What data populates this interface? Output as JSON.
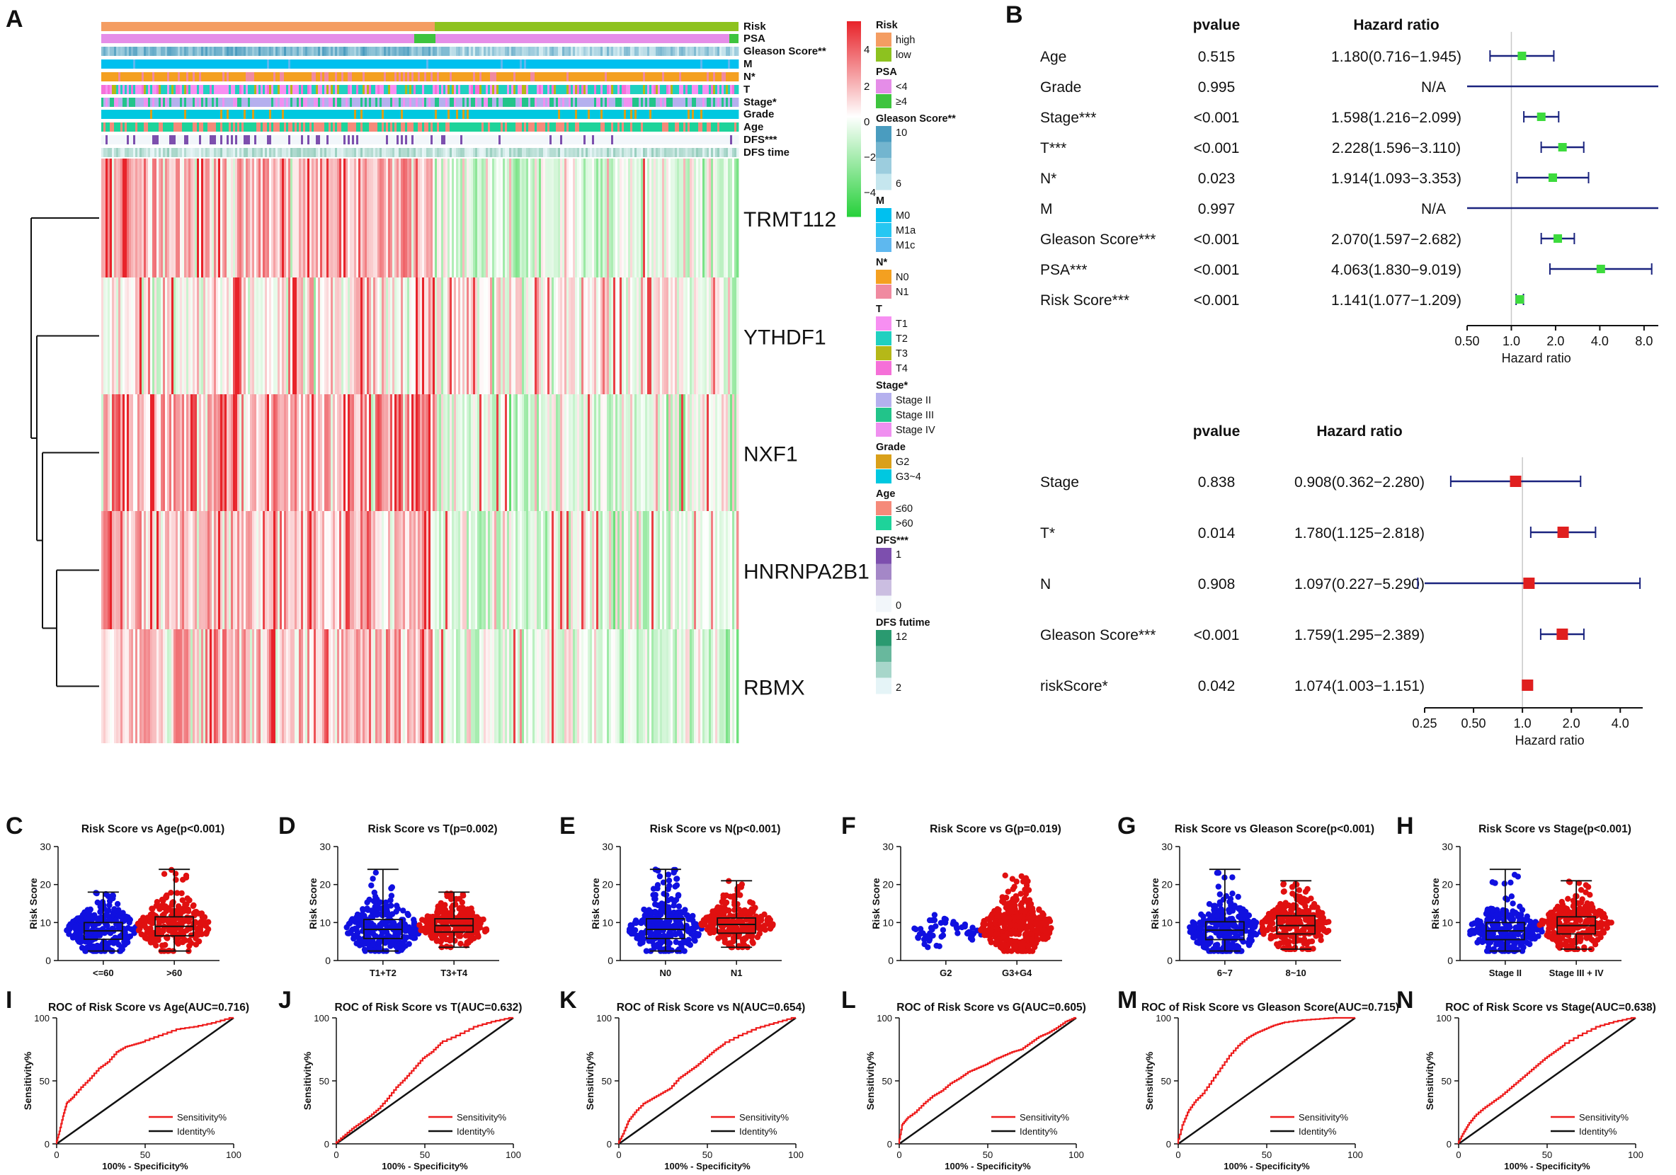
{
  "panel_labels": [
    "A",
    "B",
    "C",
    "D",
    "E",
    "F",
    "G",
    "H",
    "I",
    "J",
    "K",
    "L",
    "M",
    "N"
  ],
  "heatmap": {
    "annotation_rows": [
      "Risk",
      "PSA",
      "Gleason Score**",
      "M",
      "N*",
      "T",
      "Stage*",
      "Grade",
      "Age",
      "DFS***",
      "DFS time"
    ],
    "genes": [
      "TRMT112",
      "YTHDF1",
      "NXF1",
      "HNRNPA2B1",
      "RBMX"
    ],
    "color_scale": {
      "ticks": [
        "4",
        "2",
        "0",
        "−2",
        "−4"
      ],
      "high": "#e8232a",
      "mid": "#ffffff",
      "low": "#26d03a"
    },
    "legend_groups": [
      {
        "title": "Risk",
        "items": [
          {
            "label": "high",
            "color": "#f49d62"
          },
          {
            "label": "low",
            "color": "#8dc21f"
          }
        ]
      },
      {
        "title": "PSA",
        "items": [
          {
            "label": "<4",
            "color": "#e58de8"
          },
          {
            "label": "≥4",
            "color": "#3ec43e"
          }
        ]
      },
      {
        "title": "Gleason Score**",
        "gradient": [
          "#4a9cbf",
          "#c5e6ee"
        ],
        "ticks": [
          "10",
          "6"
        ]
      },
      {
        "title": "M",
        "items": [
          {
            "label": "M0",
            "color": "#00c0ef"
          },
          {
            "label": "M1a",
            "color": "#26c7f2"
          },
          {
            "label": "M1c",
            "color": "#5eb8ef"
          }
        ]
      },
      {
        "title": "N*",
        "items": [
          {
            "label": "N0",
            "color": "#f4a020"
          },
          {
            "label": "N1",
            "color": "#f08aa0"
          }
        ]
      },
      {
        "title": "T",
        "items": [
          {
            "label": "T1",
            "color": "#f78ff2"
          },
          {
            "label": "T2",
            "color": "#20d0c0"
          },
          {
            "label": "T3",
            "color": "#b5b818"
          },
          {
            "label": "T4",
            "color": "#f570d8"
          }
        ]
      },
      {
        "title": "Stage*",
        "items": [
          {
            "label": "Stage II",
            "color": "#b5b0ee"
          },
          {
            "label": "Stage III",
            "color": "#22c48a"
          },
          {
            "label": "Stage IV",
            "color": "#f090f0"
          }
        ]
      },
      {
        "title": "Grade",
        "items": [
          {
            "label": "G2",
            "color": "#d9a01a"
          },
          {
            "label": "G3~4",
            "color": "#00c8e0"
          }
        ]
      },
      {
        "title": "Age",
        "items": [
          {
            "label": "≤60",
            "color": "#f58a7a"
          },
          {
            "label": ">60",
            "color": "#1ed39a"
          }
        ]
      },
      {
        "title": "DFS***",
        "gradient": [
          "#7d4fae",
          "#f2f6fa"
        ],
        "ticks": [
          "1",
          "0"
        ]
      },
      {
        "title": "DFS futime",
        "gradient": [
          "#2a9a70",
          "#e5f4f7"
        ],
        "ticks": [
          "12",
          "2"
        ]
      }
    ]
  },
  "forest_univariate": {
    "headers": {
      "p": "pvalue",
      "hr": "Hazard ratio"
    },
    "rows": [
      {
        "name": "Age",
        "p": "0.515",
        "hr_text": "1.180(0.716−1.945)",
        "hr": 1.18,
        "lo": 0.716,
        "hi": 1.945
      },
      {
        "name": "Grade",
        "p": "0.995",
        "hr_text": "N/A",
        "hr": null,
        "lo": 0.5,
        "hi": 10
      },
      {
        "name": "Stage***",
        "p": "<0.001",
        "hr_text": "1.598(1.216−2.099)",
        "hr": 1.598,
        "lo": 1.216,
        "hi": 2.099
      },
      {
        "name": "T***",
        "p": "<0.001",
        "hr_text": "2.228(1.596−3.110)",
        "hr": 2.228,
        "lo": 1.596,
        "hi": 3.11
      },
      {
        "name": "N*",
        "p": "0.023",
        "hr_text": "1.914(1.093−3.353)",
        "hr": 1.914,
        "lo": 1.093,
        "hi": 3.353
      },
      {
        "name": "M",
        "p": "0.997",
        "hr_text": "N/A",
        "hr": null,
        "lo": 0.5,
        "hi": 10
      },
      {
        "name": "Gleason Score***",
        "p": "<0.001",
        "hr_text": "2.070(1.597−2.682)",
        "hr": 2.07,
        "lo": 1.597,
        "hi": 2.682
      },
      {
        "name": "PSA***",
        "p": "<0.001",
        "hr_text": "4.063(1.830−9.019)",
        "hr": 4.063,
        "lo": 1.83,
        "hi": 9.019
      },
      {
        "name": "Risk Score***",
        "p": "<0.001",
        "hr_text": "1.141(1.077−1.209)",
        "hr": 1.141,
        "lo": 1.077,
        "hi": 1.209
      }
    ],
    "axis_ticks": [
      {
        "v": 0.5,
        "label": "0.50"
      },
      {
        "v": 1,
        "label": "1.0"
      },
      {
        "v": 2,
        "label": "2.0"
      },
      {
        "v": 4,
        "label": "4.0"
      },
      {
        "v": 8,
        "label": "8.0"
      }
    ],
    "axis_range": [
      0.5,
      10
    ],
    "xlabel": "Hazard ratio",
    "marker_color": "#3ddb3d",
    "line_color": "#1a237e"
  },
  "forest_multivariate": {
    "headers": {
      "p": "pvalue",
      "hr": "Hazard  ratio"
    },
    "rows": [
      {
        "name": "Stage",
        "p": "0.838",
        "hr_text": "0.908(0.362−2.280)",
        "hr": 0.908,
        "lo": 0.362,
        "hi": 2.28
      },
      {
        "name": "T*",
        "p": "0.014",
        "hr_text": "1.780(1.125−2.818)",
        "hr": 1.78,
        "lo": 1.125,
        "hi": 2.818
      },
      {
        "name": "N",
        "p": "0.908",
        "hr_text": "1.097(0.227−5.290)",
        "hr": 1.097,
        "lo": 0.227,
        "hi": 5.29
      },
      {
        "name": "Gleason Score***",
        "p": "<0.001",
        "hr_text": "1.759(1.295−2.389)",
        "hr": 1.759,
        "lo": 1.295,
        "hi": 2.389
      },
      {
        "name": "riskScore*",
        "p": "0.042",
        "hr_text": "1.074(1.003−1.151)",
        "hr": 1.074,
        "lo": 1.003,
        "hi": 1.151
      }
    ],
    "axis_ticks": [
      {
        "v": 0.25,
        "label": "0.25"
      },
      {
        "v": 0.5,
        "label": "0.50"
      },
      {
        "v": 1,
        "label": "1.0"
      },
      {
        "v": 2,
        "label": "2.0"
      },
      {
        "v": 4,
        "label": "4.0"
      }
    ],
    "axis_range": [
      0.25,
      5.5
    ],
    "xlabel": "Hazard ratio",
    "marker_color": "#e01f1f",
    "line_color": "#1a237e"
  },
  "chart_data": [
    {
      "panel": "C",
      "type": "scatter",
      "title": "Risk Score vs Age(p<0.001)",
      "ylabel": "Risk Score",
      "ylim": [
        0,
        30
      ],
      "yticks": [
        "0",
        "10",
        "20",
        "30"
      ],
      "categories": [
        "<=60",
        ">60"
      ],
      "groups": [
        {
          "name": "<=60",
          "color": "#1010e0",
          "median": 7.8,
          "q1": 5.6,
          "q3": 10,
          "min": 2.5,
          "max": 18
        },
        {
          "name": ">60",
          "color": "#e01010",
          "median": 9,
          "q1": 6.5,
          "q3": 11.5,
          "min": 2.5,
          "max": 24
        }
      ]
    },
    {
      "panel": "D",
      "type": "scatter",
      "title": "Risk Score vs T(p=0.002)",
      "ylabel": "Risk Score",
      "ylim": [
        0,
        30
      ],
      "yticks": [
        "0",
        "10",
        "20",
        "30"
      ],
      "categories": [
        "T1+T2",
        "T3+T4"
      ],
      "groups": [
        {
          "name": "T1+T2",
          "color": "#1010e0",
          "median": 8.2,
          "q1": 5.8,
          "q3": 10.8,
          "min": 2.5,
          "max": 24
        },
        {
          "name": "T3+T4",
          "color": "#e01010",
          "median": 9.2,
          "q1": 7.5,
          "q3": 11,
          "min": 3.5,
          "max": 18
        }
      ]
    },
    {
      "panel": "E",
      "type": "scatter",
      "title": "Risk Score vs N(p<0.001)",
      "ylabel": "Risk Score",
      "ylim": [
        0,
        30
      ],
      "yticks": [
        "0",
        "10",
        "20",
        "30"
      ],
      "categories": [
        "N0",
        "N1"
      ],
      "groups": [
        {
          "name": "N0",
          "color": "#1010e0",
          "median": 8.2,
          "q1": 5.8,
          "q3": 11,
          "min": 2.5,
          "max": 24
        },
        {
          "name": "N1",
          "color": "#e01010",
          "median": 9.5,
          "q1": 7.2,
          "q3": 11.2,
          "min": 3.5,
          "max": 21
        }
      ]
    },
    {
      "panel": "F",
      "type": "scatter",
      "title": "Risk Score vs G(p=0.019)",
      "ylabel": "Risk Score",
      "ylim": [
        0,
        30
      ],
      "yticks": [
        "0",
        "10",
        "20",
        "30"
      ],
      "categories": [
        "G2",
        "G3+G4"
      ],
      "groups": [
        {
          "name": "G2",
          "color": "#1010e0",
          "median": 7,
          "q1": 5.5,
          "q3": 8.5,
          "min": 3.5,
          "max": 12,
          "nobox": true
        },
        {
          "name": "G3+G4",
          "color": "#e01010",
          "median": 8.6,
          "q1": 6,
          "q3": 11,
          "min": 2.5,
          "max": 24,
          "nobox": true
        }
      ]
    },
    {
      "panel": "G",
      "type": "scatter",
      "title": "Risk Score vs Gleason Score(p<0.001)",
      "ylabel": "Risk Score",
      "ylim": [
        0,
        30
      ],
      "yticks": [
        "0",
        "10",
        "20",
        "30"
      ],
      "categories": [
        "6~7",
        "8~10"
      ],
      "groups": [
        {
          "name": "6~7",
          "color": "#1010e0",
          "median": 8,
          "q1": 5.5,
          "q3": 10.2,
          "min": 2.5,
          "max": 24
        },
        {
          "name": "8~10",
          "color": "#e01010",
          "median": 9.2,
          "q1": 7,
          "q3": 11.8,
          "min": 3,
          "max": 21
        }
      ]
    },
    {
      "panel": "H",
      "type": "scatter",
      "title": "Risk Score vs Stage(p<0.001)",
      "ylabel": "Risk Score",
      "ylim": [
        0,
        30
      ],
      "yticks": [
        "0",
        "10",
        "20",
        "30"
      ],
      "categories": [
        "Stage II",
        "Stage III + IV"
      ],
      "groups": [
        {
          "name": "Stage II",
          "color": "#1010e0",
          "median": 7.8,
          "q1": 5.5,
          "q3": 10,
          "min": 2.5,
          "max": 24
        },
        {
          "name": "Stage III + IV",
          "color": "#e01010",
          "median": 9.2,
          "q1": 7,
          "q3": 11.5,
          "min": 3,
          "max": 21
        }
      ]
    },
    {
      "panel": "I",
      "type": "line",
      "title": "ROC of Risk Score vs Age(AUC=0.716)",
      "xlabel": "100% - Specificity%",
      "ylabel": "Sensitivity%",
      "xlim": [
        0,
        100
      ],
      "ylim": [
        0,
        100
      ],
      "ticks": [
        "0",
        "50",
        "100"
      ],
      "legend": [
        "Sensitivity%",
        "Identity%"
      ],
      "series": [
        {
          "name": "Sensitivity%",
          "x": [
            0,
            2,
            4,
            6,
            10,
            15,
            20,
            25,
            30,
            35,
            40,
            45,
            50,
            60,
            70,
            80,
            90,
            100
          ],
          "y": [
            0,
            10,
            22,
            32,
            37,
            45,
            52,
            60,
            65,
            73,
            77,
            79,
            81,
            86,
            91,
            93,
            96,
            100
          ]
        },
        {
          "name": "Identity%",
          "x": [
            0,
            100
          ],
          "y": [
            0,
            100
          ]
        }
      ]
    },
    {
      "panel": "J",
      "type": "line",
      "title": "ROC of Risk Score vs T(AUC=0.632)",
      "xlabel": "100% - Specificity%",
      "ylabel": "Sensitivity%",
      "xlim": [
        0,
        100
      ],
      "ylim": [
        0,
        100
      ],
      "ticks": [
        "0",
        "50",
        "100"
      ],
      "legend": [
        "Sensitivity%",
        "Identity%"
      ],
      "series": [
        {
          "name": "Sensitivity%",
          "x": [
            0,
            5,
            10,
            15,
            20,
            25,
            30,
            35,
            40,
            45,
            50,
            55,
            60,
            70,
            80,
            90,
            100
          ],
          "y": [
            0,
            6,
            12,
            17,
            22,
            28,
            36,
            45,
            52,
            60,
            68,
            73,
            80,
            86,
            93,
            97,
            100
          ]
        },
        {
          "name": "Identity%",
          "x": [
            0,
            100
          ],
          "y": [
            0,
            100
          ]
        }
      ]
    },
    {
      "panel": "K",
      "type": "line",
      "title": "ROC of Risk Score vs N(AUC=0.654)",
      "xlabel": "100% - Specificity%",
      "ylabel": "Sensitivity%",
      "xlim": [
        0,
        100
      ],
      "ylim": [
        0,
        100
      ],
      "ticks": [
        "0",
        "50",
        "100"
      ],
      "legend": [
        "Sensitivity%",
        "Identity%"
      ],
      "series": [
        {
          "name": "Sensitivity%",
          "x": [
            0,
            3,
            6,
            10,
            15,
            20,
            25,
            30,
            35,
            40,
            45,
            50,
            55,
            60,
            70,
            80,
            90,
            100
          ],
          "y": [
            0,
            8,
            18,
            25,
            32,
            36,
            40,
            44,
            52,
            57,
            62,
            68,
            74,
            79,
            86,
            92,
            96,
            100
          ]
        },
        {
          "name": "Identity%",
          "x": [
            0,
            100
          ],
          "y": [
            0,
            100
          ]
        }
      ]
    },
    {
      "panel": "L",
      "type": "line",
      "title": "ROC of Risk Score vs G(AUC=0.605)",
      "xlabel": "100% - Specificity%",
      "ylabel": "Sensitivity%",
      "xlim": [
        0,
        100
      ],
      "ylim": [
        0,
        100
      ],
      "ticks": [
        "0",
        "50",
        "100"
      ],
      "legend": [
        "Sensitivity%",
        "Identity%"
      ],
      "series": [
        {
          "name": "Sensitivity%",
          "x": [
            0,
            2,
            5,
            10,
            15,
            20,
            25,
            30,
            35,
            40,
            45,
            50,
            55,
            60,
            65,
            70,
            75,
            80,
            85,
            90,
            95,
            100
          ],
          "y": [
            0,
            15,
            20,
            25,
            32,
            38,
            42,
            48,
            52,
            57,
            60,
            63,
            67,
            70,
            73,
            75,
            80,
            85,
            88,
            92,
            97,
            100
          ]
        },
        {
          "name": "Identity%",
          "x": [
            0,
            100
          ],
          "y": [
            0,
            100
          ]
        }
      ]
    },
    {
      "panel": "M",
      "type": "line",
      "title": "ROC of Risk Score vs Gleason Score(AUC=0.715)",
      "xlabel": "100% - Specificity%",
      "ylabel": "Sensitivity%",
      "xlim": [
        0,
        100
      ],
      "ylim": [
        0,
        100
      ],
      "ticks": [
        "0",
        "50",
        "100"
      ],
      "legend": [
        "Sensitivity%",
        "Identity%"
      ],
      "series": [
        {
          "name": "Sensitivity%",
          "x": [
            0,
            3,
            6,
            10,
            15,
            20,
            25,
            30,
            35,
            40,
            45,
            50,
            55,
            60,
            70,
            80,
            90,
            100
          ],
          "y": [
            0,
            15,
            25,
            33,
            40,
            50,
            60,
            70,
            78,
            84,
            88,
            91,
            94,
            96,
            98,
            99,
            100,
            100
          ]
        },
        {
          "name": "Identity%",
          "x": [
            0,
            100
          ],
          "y": [
            0,
            100
          ]
        }
      ]
    },
    {
      "panel": "N",
      "type": "line",
      "title": "ROC of Risk Score vs Stage(AUC=0.638)",
      "xlabel": "100% - Specificity%",
      "ylabel": "Sensitivity%",
      "xlim": [
        0,
        100
      ],
      "ylim": [
        0,
        100
      ],
      "ticks": [
        "0",
        "50",
        "100"
      ],
      "legend": [
        "Sensitivity%",
        "Identity%"
      ],
      "series": [
        {
          "name": "Sensitivity%",
          "x": [
            0,
            3,
            6,
            10,
            15,
            20,
            25,
            30,
            35,
            40,
            45,
            50,
            55,
            60,
            70,
            80,
            90,
            100
          ],
          "y": [
            0,
            8,
            15,
            22,
            28,
            33,
            38,
            44,
            50,
            56,
            62,
            68,
            73,
            78,
            86,
            93,
            97,
            100
          ]
        },
        {
          "name": "Identity%",
          "x": [
            0,
            100
          ],
          "y": [
            0,
            100
          ]
        }
      ]
    }
  ]
}
